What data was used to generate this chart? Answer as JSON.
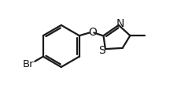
{
  "bg_color": "#ffffff",
  "line_color": "#1a1a1a",
  "line_width": 1.6,
  "font_size_label": 9.5,
  "font_family": "DejaVu Sans",
  "xlim": [
    -1.05,
    1.3
  ],
  "ylim": [
    -0.68,
    0.68
  ]
}
